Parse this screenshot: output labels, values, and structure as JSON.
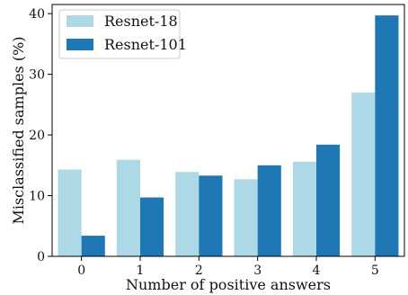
{
  "chart_data": {
    "type": "bar",
    "title": "",
    "xlabel": "Number of positive answers",
    "ylabel": "Misclassified samples (%)",
    "categories": [
      "0",
      "1",
      "2",
      "3",
      "4",
      "5"
    ],
    "series": [
      {
        "name": "Resnet-18",
        "color": "#add8e6",
        "values": [
          14.3,
          15.9,
          13.9,
          12.7,
          15.6,
          27.0
        ]
      },
      {
        "name": "Resnet-101",
        "color": "#1f77b4",
        "values": [
          3.4,
          9.7,
          13.3,
          15.0,
          18.4,
          39.7
        ]
      }
    ],
    "ylim": [
      0,
      41.5
    ],
    "yticks": [
      "0",
      "10",
      "20",
      "30",
      "40"
    ],
    "grid": false,
    "legend": "top-left"
  }
}
